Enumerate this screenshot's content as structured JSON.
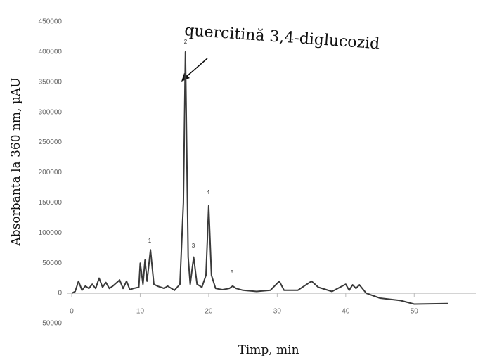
{
  "chart_data": {
    "type": "line",
    "xlabel": "Timp, min",
    "ylabel": "Absorbanta la 360 nm, µAU",
    "annotation": "quercitină 3,4-diglucozid",
    "peak_labels": [
      "1",
      "2",
      "3",
      "4",
      "5"
    ],
    "xlim": [
      0,
      59
    ],
    "ylim": [
      -50000,
      450000
    ],
    "xticks": [
      0,
      10,
      20,
      30,
      40,
      50
    ],
    "yticks": [
      -50000,
      0,
      50000,
      100000,
      150000,
      200000,
      250000,
      300000,
      350000,
      400000,
      450000
    ],
    "grid": false,
    "x": [
      0,
      0.5,
      1,
      1.5,
      2,
      2.5,
      3,
      3.5,
      4,
      4.5,
      5,
      5.5,
      6,
      7,
      7.5,
      8,
      8.5,
      9,
      9.8,
      10,
      10.4,
      10.7,
      11,
      11.5,
      12,
      12.5,
      13,
      13.5,
      14,
      15,
      15.8,
      16.3,
      16.6,
      17,
      17.3,
      17.8,
      18.3,
      19,
      19.6,
      20,
      20.4,
      21,
      22,
      23,
      23.5,
      24,
      25,
      27,
      29,
      30.3,
      31,
      33,
      35,
      36,
      38,
      39.5,
      40,
      40.5,
      41,
      41.5,
      42,
      43,
      45,
      48,
      50,
      55
    ],
    "series": [
      {
        "name": "Absorbanta",
        "color": "#3a3a3a",
        "values": [
          0,
          3000,
          20000,
          5000,
          12000,
          8000,
          15000,
          8000,
          25000,
          10000,
          18000,
          8000,
          12000,
          22000,
          8000,
          20000,
          6000,
          8000,
          10000,
          50000,
          15000,
          55000,
          20000,
          72000,
          15000,
          12000,
          10000,
          8000,
          12000,
          5000,
          15000,
          150000,
          400000,
          60000,
          15000,
          60000,
          15000,
          10000,
          30000,
          145000,
          30000,
          8000,
          6000,
          8000,
          12000,
          8000,
          5000,
          3000,
          5000,
          20000,
          5000,
          5000,
          20000,
          10000,
          3000,
          12000,
          15000,
          5000,
          14000,
          8000,
          14000,
          0,
          -8000,
          -12000,
          -18000,
          -17000
        ]
      }
    ]
  }
}
